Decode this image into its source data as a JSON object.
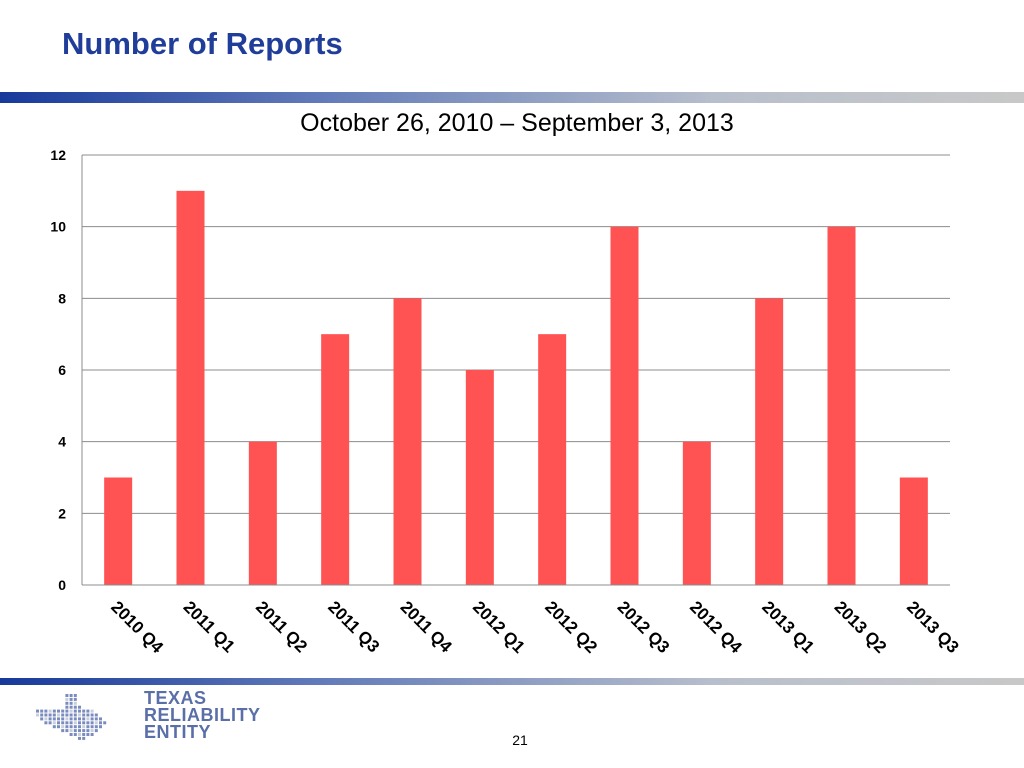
{
  "header": {
    "title": "Number of Reports"
  },
  "chart_data": {
    "type": "bar",
    "title": "October 26, 2010 – September 3, 2013",
    "xlabel": "",
    "ylabel": "",
    "categories": [
      "2010 Q4",
      "2011 Q1",
      "2011 Q2",
      "2011 Q3",
      "2011 Q4",
      "2012 Q1",
      "2012 Q2",
      "2012 Q3",
      "2012 Q4",
      "2013 Q1",
      "2013 Q2",
      "2013 Q3"
    ],
    "values": [
      3,
      11,
      4,
      7,
      8,
      6,
      7,
      10,
      4,
      8,
      10,
      3
    ],
    "ylim": [
      0,
      12
    ],
    "yticks": [
      0,
      2,
      4,
      6,
      8,
      10,
      12
    ],
    "grid": true,
    "bar_color": "#ff5252"
  },
  "footer": {
    "logo_lines": [
      "TEXAS",
      "RELIABILITY",
      "ENTITY"
    ],
    "page_number": "21"
  },
  "colors": {
    "title": "#1f3d99",
    "accent": "#17399a"
  }
}
